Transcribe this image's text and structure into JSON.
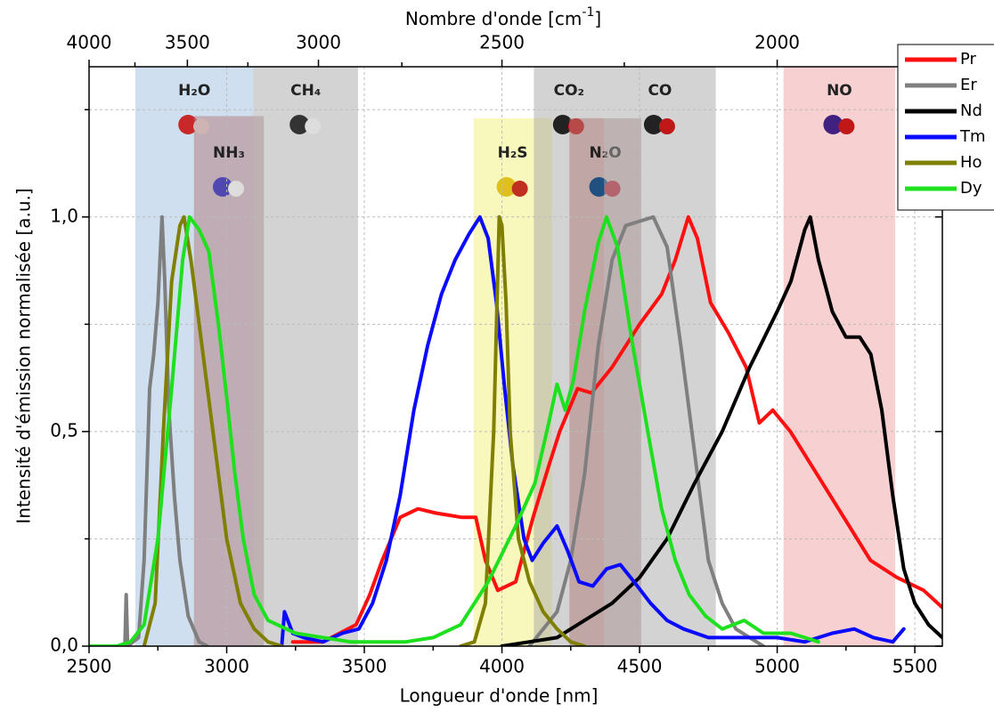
{
  "chart_data": {
    "type": "line",
    "xlabel": "Longueur d'onde [nm]",
    "ylabel": "Intensité d'émission normalisée [a.u.]",
    "x2label": {
      "text": "Nombre d'onde [cm",
      "sup": "-1",
      "end": "]"
    },
    "xlim": [
      2500,
      5600
    ],
    "xticks": [
      2500,
      3000,
      3500,
      4000,
      4500,
      5000,
      5500
    ],
    "xminorticks": [
      2750,
      3250,
      3750,
      4250,
      4750,
      5250
    ],
    "ylim": [
      0,
      1.35
    ],
    "yticks": [
      {
        "value": 0,
        "label": "0,0"
      },
      {
        "value": 0.5,
        "label": "0,5"
      },
      {
        "value": 1,
        "label": "1,0"
      }
    ],
    "yminorticks": [
      0.25,
      0.75,
      1.25
    ],
    "x2scale": "reciprocal",
    "x2factor": 10000000,
    "x2ticks": [
      4000,
      3500,
      3000,
      2500,
      2000
    ],
    "x2minorticks": [
      3750,
      3250,
      2750,
      2250
    ],
    "grid": true,
    "legend": "upper right",
    "bands": [
      {
        "label": "H₂O",
        "range": [
          2668,
          3097
        ],
        "top": 1.35,
        "color": "#9fc0e0"
      },
      {
        "label": "NH₃",
        "range": [
          2881,
          3135
        ],
        "top": 1.235,
        "color": "#b07a7a"
      },
      {
        "label": "CH₄",
        "range": [
          3097,
          3477
        ],
        "top": 1.35,
        "color": "#a8a8a8"
      },
      {
        "label": "H₂S",
        "range": [
          3897,
          4181
        ],
        "top": 1.23,
        "color": "#f2ef7a"
      },
      {
        "label": "CO₂",
        "range": [
          4116,
          4371
        ],
        "top": 1.35,
        "color": "#a8a8a8"
      },
      {
        "label": "N₂O",
        "range": [
          4245,
          4506
        ],
        "top": 1.23,
        "color": "#b07a7a"
      },
      {
        "label": "CO",
        "range": [
          4371,
          4777
        ],
        "top": 1.35,
        "color": "#a8a8a8"
      },
      {
        "label": "NO",
        "range": [
          5023,
          5429
        ],
        "top": 1.35,
        "color": "#f0a4a4"
      }
    ],
    "series": [
      {
        "name": "Pr",
        "color": "#ff1010",
        "x": [
          3240,
          3350,
          3470,
          3520,
          3565,
          3630,
          3695,
          3760,
          3855,
          3905,
          3940,
          3985,
          4050,
          4113,
          4170,
          4210,
          4275,
          4325,
          4400,
          4500,
          4580,
          4630,
          4677,
          4710,
          4758,
          4823,
          4887,
          4935,
          4984,
          5048,
          5145,
          5242,
          5339,
          5435,
          5532,
          5600
        ],
        "values": [
          0.01,
          0.01,
          0.05,
          0.12,
          0.2,
          0.3,
          0.32,
          0.31,
          0.3,
          0.3,
          0.2,
          0.13,
          0.15,
          0.3,
          0.42,
          0.5,
          0.6,
          0.59,
          0.65,
          0.75,
          0.82,
          0.9,
          1.0,
          0.95,
          0.8,
          0.73,
          0.65,
          0.52,
          0.55,
          0.5,
          0.4,
          0.3,
          0.2,
          0.16,
          0.13,
          0.09
        ]
      },
      {
        "name": "Er",
        "color": "#7f7f7f",
        "x": [
          2630,
          2635,
          2640,
          2680,
          2700,
          2720,
          2735,
          2750,
          2765,
          2775,
          2790,
          2810,
          2830,
          2860,
          2900,
          2930,
          null,
          4100,
          4200,
          4250,
          4300,
          4350,
          4400,
          4450,
          4500,
          4550,
          4600,
          4650,
          4700,
          4750,
          4800,
          4850,
          4900,
          4950
        ],
        "values": [
          0,
          0.12,
          0,
          0.02,
          0.2,
          0.6,
          0.68,
          0.8,
          1.0,
          0.85,
          0.55,
          0.35,
          0.2,
          0.07,
          0.01,
          0,
          null,
          0,
          0.08,
          0.2,
          0.4,
          0.7,
          0.9,
          0.98,
          0.99,
          1.0,
          0.93,
          0.7,
          0.45,
          0.2,
          0.1,
          0.04,
          0.02,
          0
        ]
      },
      {
        "name": "Nd",
        "color": "#000000",
        "x": [
          4000,
          4100,
          4200,
          4300,
          4400,
          4500,
          4600,
          4700,
          4800,
          4900,
          5000,
          5050,
          5100,
          5120,
          5150,
          5200,
          5250,
          5300,
          5340,
          5380,
          5420,
          5460,
          5500,
          5550,
          5600
        ],
        "values": [
          0,
          0.01,
          0.02,
          0.06,
          0.1,
          0.16,
          0.25,
          0.38,
          0.5,
          0.65,
          0.78,
          0.85,
          0.97,
          1.0,
          0.9,
          0.78,
          0.72,
          0.72,
          0.68,
          0.55,
          0.35,
          0.18,
          0.1,
          0.05,
          0.02
        ]
      },
      {
        "name": "Tm",
        "color": "#0a0aff",
        "x": [
          3200,
          3210,
          3240,
          3280,
          3350,
          3420,
          3480,
          3530,
          3580,
          3630,
          3680,
          3730,
          3780,
          3830,
          3880,
          3920,
          3950,
          3980,
          4010,
          4040,
          4080,
          4110,
          4150,
          4200,
          4240,
          4280,
          4330,
          4380,
          4430,
          4480,
          4540,
          4600,
          4660,
          4750,
          4850,
          5000,
          5100,
          5200,
          5280,
          5350,
          5420,
          5460
        ],
        "values": [
          0,
          0.08,
          0.03,
          0.02,
          0.01,
          0.03,
          0.04,
          0.1,
          0.2,
          0.35,
          0.55,
          0.7,
          0.82,
          0.9,
          0.96,
          1.0,
          0.95,
          0.8,
          0.6,
          0.42,
          0.25,
          0.2,
          0.24,
          0.28,
          0.22,
          0.15,
          0.14,
          0.18,
          0.19,
          0.15,
          0.1,
          0.06,
          0.04,
          0.02,
          0.02,
          0.02,
          0.01,
          0.03,
          0.04,
          0.02,
          0.01,
          0.04
        ]
      },
      {
        "name": "Ho",
        "color": "#7f7f00",
        "x": [
          2700,
          2740,
          2770,
          2800,
          2830,
          2845,
          2870,
          2900,
          2950,
          3000,
          3050,
          3100,
          3150,
          3200,
          null,
          3850,
          3900,
          3940,
          3970,
          3990,
          4000,
          4015,
          4030,
          4060,
          4100,
          4150,
          4200,
          4250,
          4300
        ],
        "values": [
          0,
          0.1,
          0.5,
          0.85,
          0.98,
          1.0,
          0.9,
          0.75,
          0.5,
          0.25,
          0.1,
          0.04,
          0.01,
          0,
          null,
          0,
          0.01,
          0.1,
          0.5,
          1.0,
          0.98,
          0.8,
          0.5,
          0.25,
          0.15,
          0.08,
          0.04,
          0.01,
          0
        ]
      },
      {
        "name": "Dy",
        "color": "#1fe01f",
        "x": [
          2500,
          2600,
          2650,
          2700,
          2750,
          2800,
          2840,
          2865,
          2900,
          2935,
          2970,
          3000,
          3030,
          3060,
          3100,
          3150,
          3250,
          3350,
          3450,
          3550,
          3650,
          3750,
          3850,
          3950,
          4050,
          4120,
          4170,
          4200,
          4230,
          4260,
          4300,
          4350,
          4380,
          4420,
          4470,
          4530,
          4580,
          4630,
          4680,
          4740,
          4800,
          4880,
          4950,
          5050,
          5150
        ],
        "values": [
          0,
          0,
          0.01,
          0.05,
          0.25,
          0.6,
          0.9,
          1.0,
          0.97,
          0.92,
          0.75,
          0.58,
          0.4,
          0.25,
          0.12,
          0.06,
          0.03,
          0.02,
          0.01,
          0.01,
          0.01,
          0.02,
          0.05,
          0.15,
          0.28,
          0.38,
          0.52,
          0.61,
          0.55,
          0.62,
          0.78,
          0.94,
          1.0,
          0.93,
          0.72,
          0.5,
          0.32,
          0.2,
          0.12,
          0.07,
          0.04,
          0.06,
          0.03,
          0.03,
          0.01
        ]
      }
    ]
  }
}
